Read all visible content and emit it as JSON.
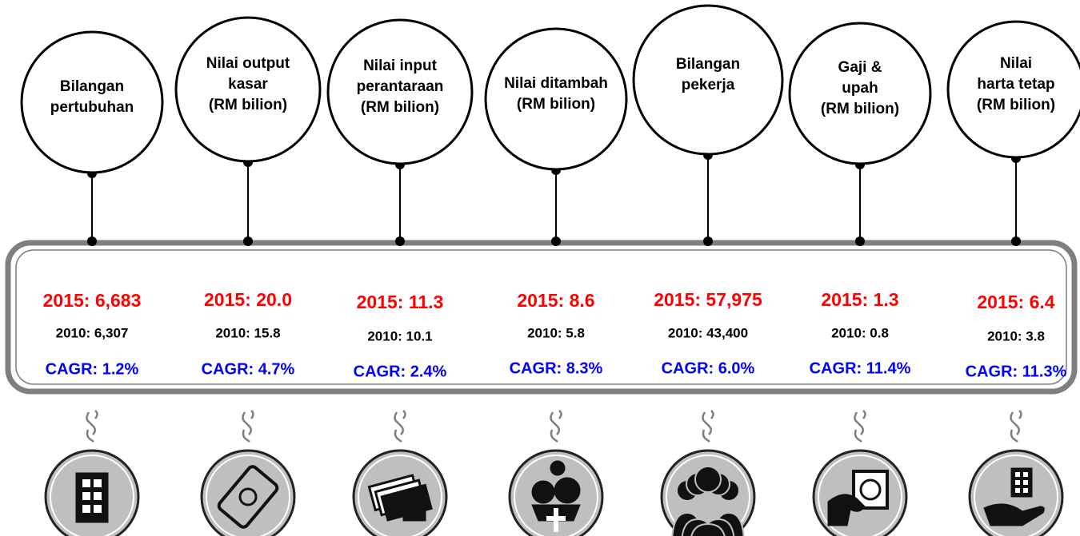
{
  "items": [
    {
      "label": [
        "Bilangan",
        "pertubuhan"
      ],
      "y2015": "2015: 6,683",
      "y2010": "2010: 6,307",
      "cagr": "CAGR: 1.2%"
    },
    {
      "label": [
        "Nilai output",
        "kasar",
        "(RM bilion)"
      ],
      "y2015": "2015: 20.0",
      "y2010": "2010: 15.8",
      "cagr": "CAGR: 4.7%"
    },
    {
      "label": [
        "Nilai input",
        "perantaraan",
        "(RM bilion)"
      ],
      "y2015": "2015: 11.3",
      "y2010": "2010: 10.1",
      "cagr": "CAGR: 2.4%"
    },
    {
      "label": [
        "Nilai ditambah",
        "(RM bilion)"
      ],
      "y2015": "2015: 8.6",
      "y2010": "2010: 5.8",
      "cagr": "CAGR: 8.3%"
    },
    {
      "label": [
        "Bilangan",
        "pekerja"
      ],
      "y2015": "2015: 57,975",
      "y2010": "2010: 43,400",
      "cagr": "CAGR: 6.0%"
    },
    {
      "label": [
        "Gaji &",
        "upah",
        "(RM bilion)"
      ],
      "y2015": "2015: 1.3",
      "y2010": "2010: 0.8",
      "cagr": "CAGR: 11.4%"
    },
    {
      "label": [
        "Nilai",
        "harta tetap",
        "(RM bilion)"
      ],
      "y2015": "2015: 6.4",
      "y2010": "2010: 3.8",
      "cagr": "CAGR: 11.3%"
    }
  ]
}
